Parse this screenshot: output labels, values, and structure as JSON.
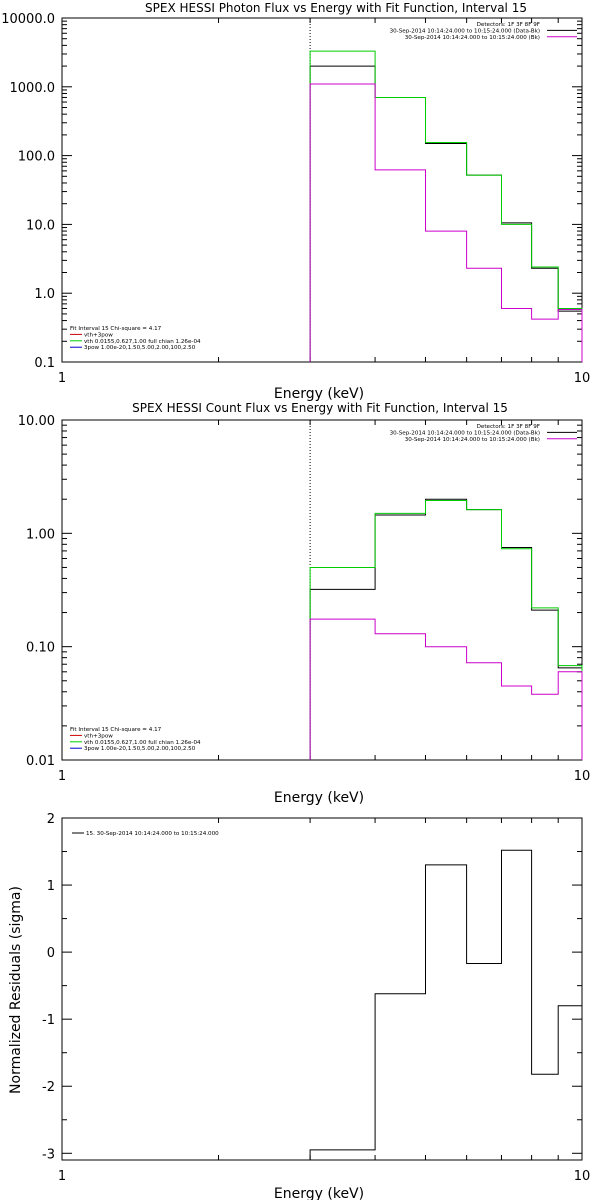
{
  "chart_data": [
    {
      "type": "line",
      "title": "SPEX HESSI Photon Flux vs Energy with Fit Function, Interval 15",
      "xlabel": "Energy (keV)",
      "ylabel": "",
      "xscale": "log",
      "yscale": "log",
      "xlim": [
        1,
        10
      ],
      "ylim": [
        0.1,
        10000
      ],
      "x_ticks": [
        {
          "v": 1,
          "label": "1"
        },
        {
          "v": 10,
          "label": "10"
        }
      ],
      "y_ticks": [
        {
          "v": 0.1,
          "label": "0.1"
        },
        {
          "v": 1,
          "label": "1.0"
        },
        {
          "v": 10,
          "label": "10.0"
        },
        {
          "v": 100,
          "label": "100.0"
        },
        {
          "v": 1000,
          "label": "1000.0"
        },
        {
          "v": 10000,
          "label": "10000.0"
        }
      ],
      "edges": [
        3,
        4,
        5,
        6,
        7,
        8,
        9,
        10
      ],
      "vline": 3,
      "series": [
        {
          "key": "data",
          "color": "#000000",
          "values": [
            2000,
            700,
            150,
            52,
            10.5,
            2.3,
            0.55
          ]
        },
        {
          "key": "total",
          "color": "#00cc00",
          "values": [
            3300,
            700,
            155,
            52,
            10,
            2.4,
            0.6
          ]
        },
        {
          "key": "component",
          "color": "#cc00cc",
          "values": [
            1100,
            62,
            8,
            2.3,
            0.6,
            0.42,
            0.58
          ]
        }
      ],
      "legend_top": {
        "lines": [
          {
            "text": "Detectors: 1F 3F 8F 9F",
            "color": ""
          },
          {
            "text": "30-Sep-2014 10:14:24.000 to 10:15:24.000 (Data-Bk)",
            "color": "#000000"
          },
          {
            "text": "30-Sep-2014 10:14:24.000 to 10:15:24.000 (Bk)",
            "color": "#cc00cc"
          }
        ]
      },
      "legend_bottom": {
        "lines": [
          {
            "text": "Fit Interval 15    Chi-square = 4.17",
            "color": ""
          },
          {
            "text": "vth+3pow",
            "color": "#cc0000"
          },
          {
            "text": "vth 0.0155,0.627,1.00  full chian 1.26e-04",
            "color": "#00cc00"
          },
          {
            "text": "3pow 1.00e-20,1.50,5.00,2.00,100,2.50",
            "color": "#0000cc"
          }
        ]
      }
    },
    {
      "type": "line",
      "title": "SPEX HESSI Count Flux vs Energy with Fit Function, Interval 15",
      "xlabel": "Energy (keV)",
      "ylabel": "",
      "xscale": "log",
      "yscale": "log",
      "xlim": [
        1,
        10
      ],
      "ylim": [
        0.01,
        10
      ],
      "x_ticks": [
        {
          "v": 1,
          "label": "1"
        },
        {
          "v": 10,
          "label": "10"
        }
      ],
      "y_ticks": [
        {
          "v": 0.01,
          "label": "0.01"
        },
        {
          "v": 0.1,
          "label": "0.10"
        },
        {
          "v": 1,
          "label": "1.00"
        },
        {
          "v": 10,
          "label": "10.00"
        }
      ],
      "edges": [
        3,
        4,
        5,
        6,
        7,
        8,
        9,
        10
      ],
      "vline": 3,
      "series": [
        {
          "key": "data",
          "color": "#000000",
          "values": [
            0.32,
            1.45,
            2.0,
            1.62,
            0.75,
            0.21,
            0.065
          ]
        },
        {
          "key": "total",
          "color": "#00cc00",
          "values": [
            0.5,
            1.5,
            1.95,
            1.62,
            0.73,
            0.22,
            0.068
          ]
        },
        {
          "key": "component",
          "color": "#cc00cc",
          "values": [
            0.175,
            0.13,
            0.1,
            0.072,
            0.045,
            0.038,
            0.06
          ]
        }
      ],
      "legend_top": {
        "lines": [
          {
            "text": "Detectors: 1F 3F 8F 9F",
            "color": ""
          },
          {
            "text": "30-Sep-2014 10:14:24.000 to 10:15:24.000 (Data-Bk)",
            "color": "#000000"
          },
          {
            "text": "30-Sep-2014 10:14:24.000 to 10:15:24.000 (Bk)",
            "color": "#cc00cc"
          }
        ]
      },
      "legend_bottom": {
        "lines": [
          {
            "text": "Fit Interval 15    Chi-square = 4.17",
            "color": ""
          },
          {
            "text": "vth+3pow",
            "color": "#cc0000"
          },
          {
            "text": "vth 0.0155,0.627,1.00  full chian 1.26e-04",
            "color": "#00cc00"
          },
          {
            "text": "3pow 1.00e-20,1.50,5.00,2.00,100,2.50",
            "color": "#0000cc"
          }
        ]
      }
    },
    {
      "type": "line",
      "title": "",
      "xlabel": "Energy (keV)",
      "ylabel": "Normalized Residuals (sigma)",
      "xscale": "log",
      "yscale": "linear",
      "xlim": [
        1,
        10
      ],
      "ylim": [
        -3.1,
        2
      ],
      "x_ticks": [
        {
          "v": 1,
          "label": "1"
        },
        {
          "v": 10,
          "label": "10"
        }
      ],
      "y_ticks": [
        {
          "v": -3,
          "label": "-3"
        },
        {
          "v": -2,
          "label": "-2"
        },
        {
          "v": -1,
          "label": "-1"
        },
        {
          "v": 0,
          "label": "0"
        },
        {
          "v": 1,
          "label": "1"
        },
        {
          "v": 2,
          "label": "2"
        }
      ],
      "edges": [
        3,
        4,
        5,
        6,
        7,
        8,
        9,
        10
      ],
      "series": [
        {
          "key": "residuals",
          "color": "#000000",
          "values": [
            -2.95,
            -0.62,
            1.3,
            -0.17,
            1.52,
            -1.82,
            -0.8
          ]
        }
      ],
      "legend_top": {
        "lines": [
          {
            "text": "15. 30-Sep-2014 10:14:24.000 to 10:15:24.000",
            "color": "#000000"
          }
        ]
      }
    }
  ]
}
